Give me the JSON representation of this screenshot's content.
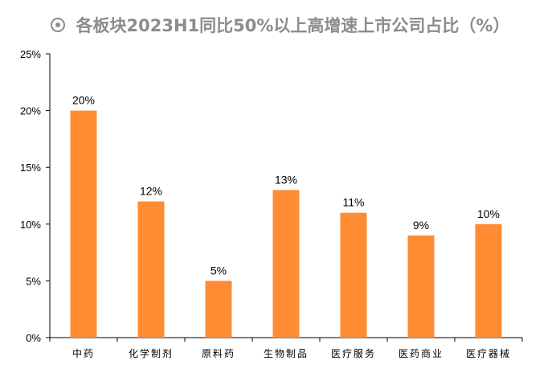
{
  "title": "各板块2023H1同比50%以上高增速上市公司占比（%）",
  "icon": "radio-target-icon",
  "colors": {
    "bar": "#FF8C32",
    "axis": "#000000",
    "title": "#8c8c8c"
  },
  "chart_data": {
    "type": "bar",
    "title": "各板块2023H1同比50%以上高增速上市公司占比（%）",
    "categories": [
      "中药",
      "化学制剂",
      "原料药",
      "生物制品",
      "医疗服务",
      "医药商业",
      "医疗器械"
    ],
    "values": [
      20,
      12,
      5,
      13,
      11,
      9,
      10
    ],
    "data_labels": [
      "20%",
      "12%",
      "5%",
      "13%",
      "11%",
      "9%",
      "10%"
    ],
    "ylim": [
      0,
      25
    ],
    "yticks": [
      "0%",
      "5%",
      "10%",
      "15%",
      "20%",
      "25%"
    ],
    "grid": false,
    "legend": "none",
    "xlabel": "",
    "ylabel": ""
  }
}
